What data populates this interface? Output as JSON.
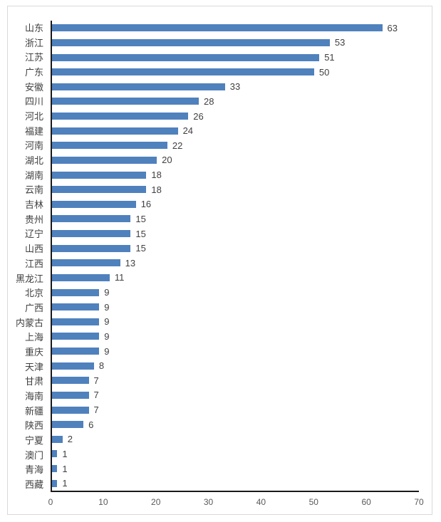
{
  "chart_data": {
    "type": "bar",
    "orientation": "horizontal",
    "title": "",
    "xlabel": "",
    "ylabel": "",
    "categories": [
      "山东",
      "浙江",
      "江苏",
      "广东",
      "安徽",
      "四川",
      "河北",
      "福建",
      "河南",
      "湖北",
      "湖南",
      "云南",
      "吉林",
      "贵州",
      "辽宁",
      "山西",
      "江西",
      "黑龙江",
      "北京",
      "广西",
      "内蒙古",
      "上海",
      "重庆",
      "天津",
      "甘肃",
      "海南",
      "新疆",
      "陕西",
      "宁夏",
      "澳门",
      "青海",
      "西藏"
    ],
    "values": [
      63,
      53,
      51,
      50,
      33,
      28,
      26,
      24,
      22,
      20,
      18,
      18,
      16,
      15,
      15,
      15,
      13,
      11,
      9,
      9,
      9,
      9,
      9,
      8,
      7,
      7,
      7,
      6,
      2,
      1,
      1,
      1
    ],
    "xlim": [
      0,
      70
    ],
    "x_ticks": [
      0,
      10,
      20,
      30,
      40,
      50,
      60,
      70
    ],
    "data_labels": true,
    "grid": false,
    "legend": "none"
  },
  "colors": {
    "bar": "#4f81bd",
    "axis_line": "#1a1a1a",
    "category_label": "#404040",
    "value_label": "#404040",
    "tick_label": "#595959",
    "frame_border": "#d9d9d9",
    "background": "#ffffff"
  }
}
